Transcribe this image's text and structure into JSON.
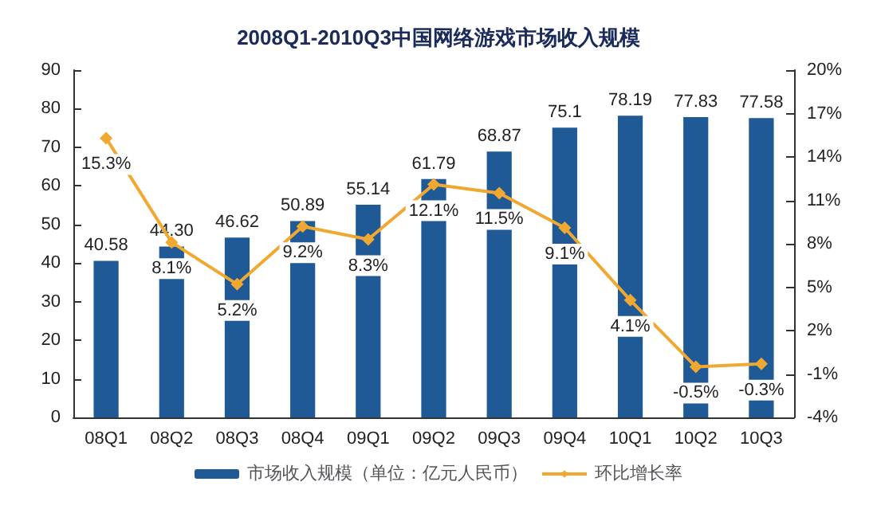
{
  "chart_data": {
    "type": "bar",
    "title": "2008Q1-2010Q3中国网络游戏市场收入规模",
    "categories": [
      "08Q1",
      "08Q2",
      "08Q3",
      "08Q4",
      "09Q1",
      "09Q2",
      "09Q3",
      "09Q4",
      "10Q1",
      "10Q2",
      "10Q3"
    ],
    "series": [
      {
        "name": "市场收入规模（单位：亿元人民币）",
        "color": "#1f5a96",
        "values": [
          40.58,
          44.3,
          46.62,
          50.89,
          55.14,
          61.79,
          68.87,
          75.1,
          78.19,
          77.83,
          77.58
        ],
        "value_labels": [
          "40.58",
          "44.30",
          "46.62",
          "50.89",
          "55.14",
          "61.79",
          "68.87",
          "75.1",
          "78.19",
          "77.83",
          "77.58"
        ]
      },
      {
        "name": "环比增长率",
        "type": "line",
        "axis": "y2",
        "color": "#f0a830",
        "marker": "diamond",
        "values": [
          15.3,
          8.1,
          5.2,
          9.2,
          8.3,
          12.1,
          11.5,
          9.1,
          4.1,
          -0.5,
          -0.3
        ],
        "value_labels": [
          "15.3%",
          "8.1%",
          "5.2%",
          "9.2%",
          "8.3%",
          "12.1%",
          "11.5%",
          "9.1%",
          "4.1%",
          "-0.5%",
          "-0.3%"
        ]
      }
    ],
    "ylim": [
      0,
      90
    ],
    "yticks": [
      0,
      10,
      20,
      30,
      40,
      50,
      60,
      70,
      80,
      90
    ],
    "y2lim": [
      -4,
      20
    ],
    "y2ticks": [
      {
        "value": -4,
        "label": "-4%"
      },
      {
        "value": -1,
        "label": "-1%"
      },
      {
        "value": 2,
        "label": "2%"
      },
      {
        "value": 5,
        "label": "5%"
      },
      {
        "value": 8,
        "label": "8%"
      },
      {
        "value": 11,
        "label": "11%"
      },
      {
        "value": 14,
        "label": "14%"
      },
      {
        "value": 17,
        "label": "17%"
      },
      {
        "value": 20,
        "label": "20%"
      }
    ],
    "legend": "bottom"
  }
}
